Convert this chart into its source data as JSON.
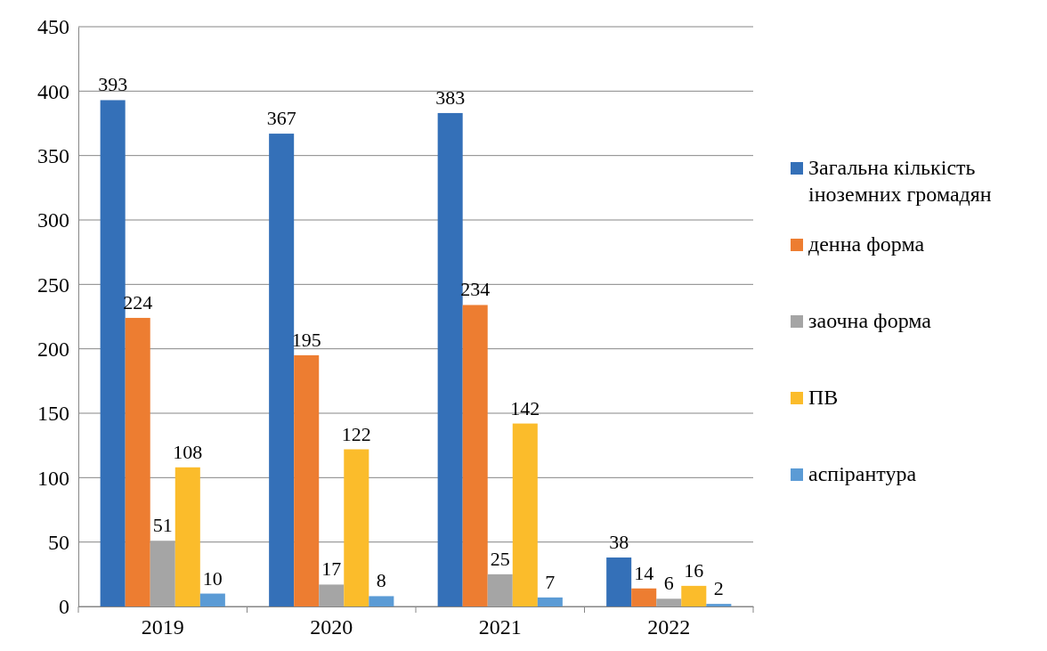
{
  "chart_data": {
    "type": "bar",
    "categories": [
      "2019",
      "2020",
      "2021",
      "2022"
    ],
    "series": [
      {
        "name": "Загальна кількість іноземних громадян",
        "color": "#3470b8",
        "values": [
          393,
          367,
          383,
          38
        ]
      },
      {
        "name": "денна форма",
        "color": "#ed7d31",
        "values": [
          224,
          195,
          234,
          14
        ]
      },
      {
        "name": "заочна форма",
        "color": "#a5a5a5",
        "values": [
          51,
          17,
          25,
          6
        ]
      },
      {
        "name": "ПВ",
        "color": "#fbbc2b",
        "values": [
          108,
          122,
          142,
          16
        ]
      },
      {
        "name": "аспірантура",
        "color": "#5b9bd5",
        "values": [
          10,
          8,
          7,
          2
        ]
      }
    ],
    "ylim": [
      0,
      450
    ],
    "yticks": [
      0,
      50,
      100,
      150,
      200,
      250,
      300,
      350,
      400,
      450
    ],
    "grid": "y",
    "legend": "right",
    "data_labels": true
  }
}
